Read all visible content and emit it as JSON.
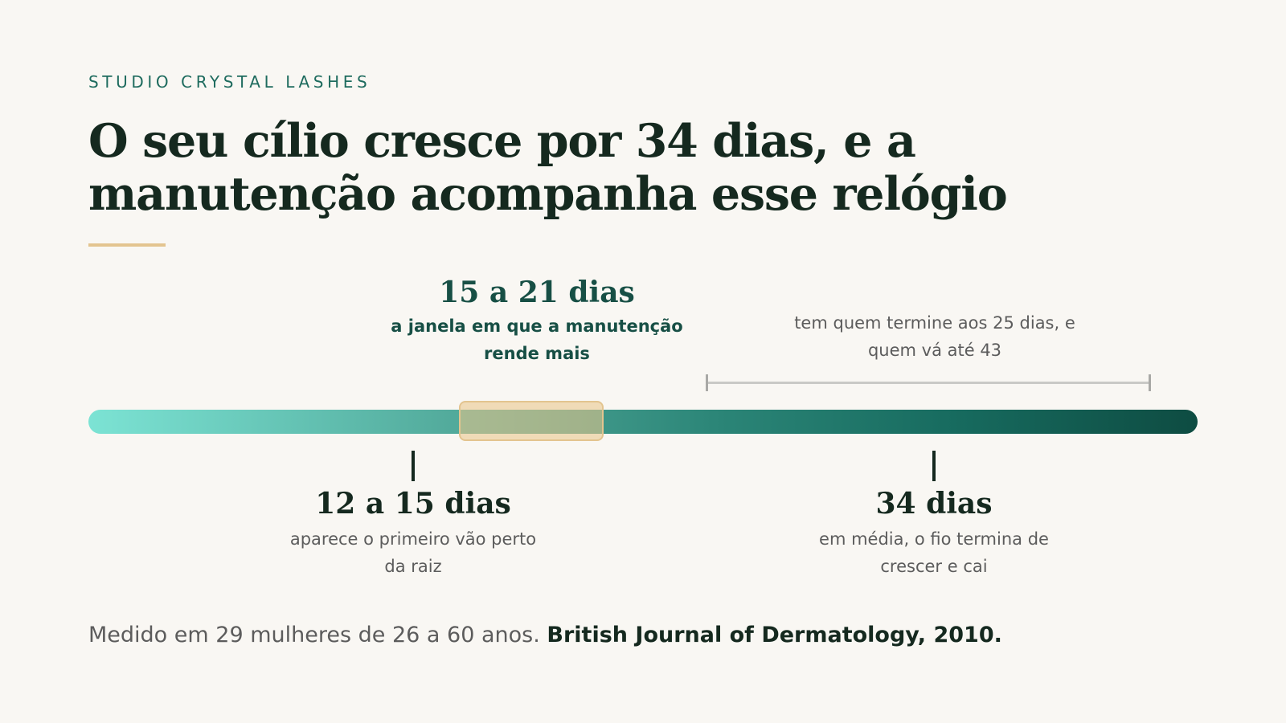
{
  "brand": "STUDIO CRYSTAL LASHES",
  "headline": "O seu cílio cresce por 34 dias, e a manutenção acompanha esse relógio",
  "window": {
    "value": "15 a 21 dias",
    "description": "a janela em que a manutenção rende mais"
  },
  "variation": {
    "description": "tem quem termine aos 25 dias, e quem vá até 43"
  },
  "gap": {
    "value": "12 a 15 dias",
    "description": "aparece o primeiro vão perto da raiz"
  },
  "cycle": {
    "value": "34 dias",
    "description": "em média, o fio termina de crescer e cai"
  },
  "source": {
    "text": "Medido em 29 mulheres de 26 a 60 anos.",
    "citation": "British Journal of Dermatology, 2010."
  },
  "colors": {
    "accent_gold": "#e3c48f",
    "brand_teal": "#1e6b5e",
    "bar_start": "#7ce3d4",
    "bar_end": "#0e4c42"
  }
}
